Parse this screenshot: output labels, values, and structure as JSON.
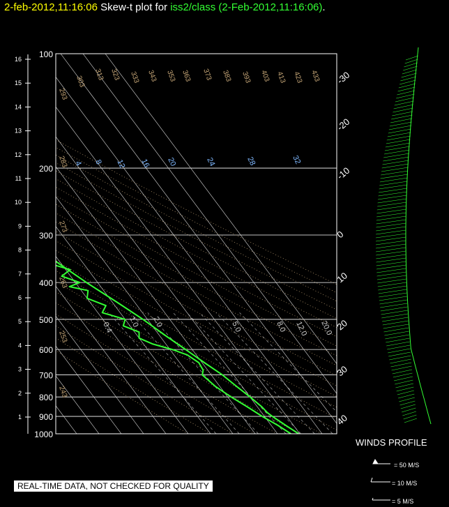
{
  "title": {
    "date": "2-feb-2012,11:16:06",
    "prefix": "Skew-t plot for",
    "source": "iss2/class (2-Feb-2012,11:16:06)",
    "suffix": "."
  },
  "colors": {
    "profile": "#33ff33",
    "title_date": "#ffff00",
    "adiabat": "#c8a878",
    "mixing_ratio": "#7fb8ff",
    "grid": "#ffffff"
  },
  "notice": "REAL-TIME DATA, NOT CHECKED FOR QUALITY",
  "winds": {
    "label": "WINDS PROFILE",
    "legend": [
      "= 50 M/S",
      "= 10 M/S",
      "= 5 M/S"
    ]
  },
  "chart_data": {
    "type": "line",
    "title": "Skew-t plot for iss2/class (2-Feb-2012,11:16:06).",
    "pressure_ticks": [
      "100",
      "200",
      "300",
      "400",
      "500",
      "600",
      "700",
      "800",
      "900",
      "1000"
    ],
    "height_ticks_km": [
      "1",
      "2",
      "3",
      "4",
      "5",
      "6",
      "7",
      "8",
      "9",
      "10",
      "11",
      "12",
      "13",
      "14",
      "15",
      "16"
    ],
    "top_temperature_ticks": [
      "-120",
      "-110",
      "-100",
      "-90",
      "-80",
      "-70",
      "-60",
      "-50",
      "-40"
    ],
    "right_temperature_ticks": [
      "-30",
      "-20",
      "-10",
      "0",
      "10",
      "20",
      "30",
      "40"
    ],
    "dry_adiabat_labels": [
      "303",
      "313",
      "323",
      "333",
      "343",
      "353",
      "363",
      "373",
      "383",
      "393",
      "403",
      "413",
      "423",
      "433",
      "293",
      "283",
      "273",
      "263",
      "253",
      "243"
    ],
    "mixing_ratio_labels_upper": [
      "4",
      "8",
      "12",
      "16",
      "20",
      "24",
      "28",
      "32"
    ],
    "mixing_ratio_labels_lower": [
      "0.4",
      "1.0",
      "2.0",
      "5.0",
      "8.0",
      "12.0",
      "20.0"
    ],
    "p_range": [
      1000,
      100
    ],
    "series": [
      {
        "values_p_t": [
          [
            1000,
            9.5
          ],
          [
            950,
            6.5
          ],
          [
            925,
            5.0
          ],
          [
            900,
            3.5
          ],
          [
            880,
            2.5
          ],
          [
            850,
            2.0
          ],
          [
            800,
            0.0
          ],
          [
            750,
            -2.5
          ],
          [
            700,
            -5.0
          ],
          [
            650,
            -9.0
          ],
          [
            600,
            -13.0
          ],
          [
            550,
            -17.5
          ],
          [
            500,
            -22.0
          ],
          [
            450,
            -28.0
          ],
          [
            400,
            -35.0
          ],
          [
            350,
            -42.0
          ],
          [
            300,
            -48.5
          ],
          [
            250,
            -55.5
          ],
          [
            220,
            -60.0
          ],
          [
            200,
            -63.0
          ],
          [
            175,
            -66.0
          ],
          [
            150,
            -68.0
          ],
          [
            130,
            -70.0
          ],
          [
            115,
            -68.0
          ],
          [
            100,
            -67.0
          ]
        ]
      },
      {
        "values_p_t": [
          [
            1000,
            6.0
          ],
          [
            950,
            3.0
          ],
          [
            900,
            -1.0
          ],
          [
            850,
            -4.5
          ],
          [
            800,
            -8.5
          ],
          [
            750,
            -12.0
          ],
          [
            700,
            -14.0
          ],
          [
            680,
            -12.0
          ],
          [
            650,
            -11.5
          ],
          [
            620,
            -14.0
          ],
          [
            600,
            -19.0
          ],
          [
            580,
            -26.0
          ],
          [
            560,
            -30.0
          ],
          [
            540,
            -28.0
          ],
          [
            520,
            -33.0
          ],
          [
            500,
            -30.0
          ],
          [
            480,
            -38.0
          ],
          [
            460,
            -34.0
          ],
          [
            440,
            -40.0
          ],
          [
            420,
            -37.0
          ],
          [
            410,
            -44.0
          ],
          [
            400,
            -38.0
          ],
          [
            385,
            -44.0
          ],
          [
            370,
            -38.0
          ],
          [
            350,
            -49.0
          ],
          [
            330,
            -48.0
          ],
          [
            310,
            -57.0
          ],
          [
            300,
            -58.0
          ],
          [
            285,
            -62.0
          ],
          [
            270,
            -67.0
          ],
          [
            260,
            -71.0
          ],
          [
            250,
            -69.0
          ],
          [
            240,
            -71.0
          ],
          [
            230,
            -74.0
          ],
          [
            220,
            -75.0
          ],
          [
            200,
            -80.0
          ],
          [
            180,
            -86.0
          ],
          [
            160,
            -90.0
          ],
          [
            140,
            -93.0
          ],
          [
            125,
            -95.0
          ],
          [
            115,
            -90.0
          ],
          [
            100,
            -88.0
          ]
        ]
      }
    ]
  }
}
